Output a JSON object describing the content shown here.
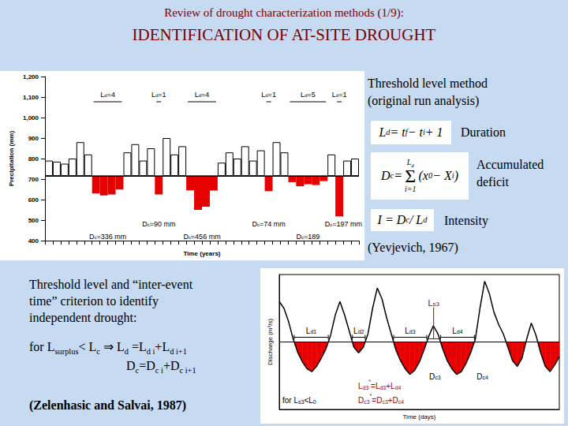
{
  "header": {
    "subtitle": "Review of drought characterization methods (1/9):",
    "title": "IDENTIFICATION OF AT-SITE DROUGHT"
  },
  "method": {
    "title": [
      "Threshold level method",
      "(original run analysis)"
    ],
    "items": [
      {
        "formula": [
          "L",
          {
            "sub": "d"
          },
          " = t",
          {
            "sub": "f"
          },
          " − t",
          {
            "sub": "i"
          },
          " + 1"
        ],
        "label": [
          "Duration"
        ]
      },
      {
        "formula": [
          "D",
          {
            "sub": "c"
          },
          " = ",
          {
            "sum": "Σ",
            "upper": [
              "L",
              {
                "sub": "d"
              }
            ],
            "lower": [
              "i=1"
            ]
          },
          "(x",
          {
            "sub": "0"
          },
          " − X",
          {
            "sub": "i"
          },
          ")"
        ],
        "label": [
          "Accumulated",
          "deficit"
        ]
      },
      {
        "formula": [
          "I = D",
          {
            "sub": "c"
          },
          " / L",
          {
            "sub": "d"
          }
        ],
        "label": [
          "Intensity"
        ]
      }
    ],
    "reference": "(Yevjevich, 1967)"
  },
  "criterion": {
    "text": [
      "Threshold level and “inter-event",
      "time” criterion to identify",
      "independent drought:"
    ],
    "rule": [
      [
        "for L",
        {
          "sub": "surplus"
        },
        "< L",
        {
          "sub": "c"
        },
        "  ⇒  L",
        {
          "sub": "d"
        },
        " =L",
        {
          "sub": "d i"
        },
        "+L",
        {
          "sub": "d i+1"
        }
      ],
      [
        "D",
        {
          "sub": "c"
        },
        "=D",
        {
          "sub": "c i"
        },
        "+D",
        {
          "sub": "c i+1"
        }
      ]
    ],
    "reference": "(Zelenhasic and Salvai, 1987)"
  },
  "chart_data": [
    {
      "type": "bar",
      "xlabel": "Time (years)",
      "ylabel": "Precipitation (mm)",
      "categories": [
        null,
        null,
        null,
        null,
        null,
        null,
        null,
        null,
        null,
        null,
        null,
        null,
        null,
        null,
        null,
        null,
        null,
        null,
        null,
        null,
        null,
        null,
        null,
        null,
        null,
        null,
        null,
        null,
        null,
        null,
        null,
        null,
        null,
        null,
        null,
        null,
        null,
        null,
        null,
        null
      ],
      "values": [
        790,
        785,
        775,
        800,
        880,
        820,
        630,
        620,
        625,
        649,
        830,
        870,
        790,
        850,
        625,
        900,
        820,
        860,
        645,
        550,
        565,
        644,
        780,
        830,
        800,
        860,
        790,
        840,
        641,
        880,
        830,
        685,
        665,
        675,
        671,
        690,
        820,
        518,
        790,
        800
      ],
      "threshold": 715,
      "color": "#e60000",
      "ylim": [
        400,
        1200
      ],
      "yticks": [
        400,
        500,
        600,
        700,
        800,
        900,
        1000,
        1100,
        1200
      ],
      "grid": false,
      "tick_labels": "y",
      "drought_labels": [
        [
          "L",
          {
            "sub": "d"
          },
          "=4"
        ],
        [
          "L",
          {
            "sub": "d"
          },
          "=1"
        ],
        [
          "L",
          {
            "sub": "d"
          },
          "=4"
        ],
        [
          "L",
          {
            "sub": "d"
          },
          "=1"
        ],
        [
          "L",
          {
            "sub": "d"
          },
          "=5"
        ],
        [
          "L",
          {
            "sub": "d"
          },
          "=1"
        ]
      ],
      "deficit_labels": [
        [
          "D",
          {
            "sub": "c"
          },
          "=336 mm"
        ],
        [
          "D",
          {
            "sub": "c"
          },
          "=90 mm"
        ],
        [
          "D",
          {
            "sub": "c"
          },
          "=456 mm"
        ],
        [
          "D",
          {
            "sub": "c"
          },
          "=74 mm"
        ],
        [
          "D",
          {
            "sub": "c"
          },
          "=189"
        ],
        [
          "D",
          {
            "sub": "c"
          },
          "=197 mm"
        ]
      ]
    },
    {
      "type": "line",
      "xlabel": "Time (days)",
      "ylabel": "Discharge (m³/s)",
      "x": [
        0,
        1,
        2,
        3,
        4,
        5,
        6,
        7,
        8,
        9,
        10,
        11,
        12,
        13,
        14,
        15,
        16,
        17,
        18,
        19,
        20,
        21,
        22,
        23,
        24,
        25,
        26,
        27,
        28,
        29,
        30,
        31,
        32,
        33,
        34,
        35,
        36,
        37,
        38,
        39,
        40,
        41,
        42,
        43,
        44,
        45,
        46,
        47,
        48,
        49,
        50,
        51,
        52,
        53,
        54,
        55,
        56,
        57,
        58,
        59,
        60
      ],
      "values": [
        8,
        7.5,
        6.5,
        5.2,
        4.2,
        3.5,
        3.0,
        2.8,
        3.2,
        3.8,
        4.5,
        5.5,
        7,
        8,
        7,
        5.8,
        4.6,
        4.2,
        4.6,
        5.6,
        7.5,
        9,
        8.2,
        6.8,
        5.6,
        4.4,
        3.6,
        3.0,
        2.6,
        2.9,
        3.5,
        4.4,
        5.4,
        6.2,
        5.6,
        4.5,
        3.6,
        3.0,
        2.6,
        2.8,
        3.4,
        4.2,
        5.2,
        7.5,
        9.5,
        8.6,
        7.2,
        6.3,
        5.6,
        4.6,
        3.6,
        3.2,
        3.8,
        5.2,
        6.4,
        5.5,
        4.2,
        3.2,
        2.8,
        3.3,
        3.9
      ],
      "threshold": 5,
      "color": "#e60000",
      "xlim": [
        0,
        60
      ],
      "ylim": [
        0,
        10
      ],
      "tick_labels": false,
      "drought_labels": [
        [
          "L",
          {
            "sub": "d1"
          }
        ],
        [
          "L",
          {
            "sub": "d2"
          }
        ],
        [
          "L",
          {
            "sub": "d3"
          }
        ],
        [
          "L",
          {
            "sub": "d4"
          }
        ]
      ],
      "deficit_labels": [
        {
          "text": [
            "D",
            {
              "sub": "c3"
            }
          ],
          "drought": 3
        },
        {
          "text": [
            "D",
            {
              "sub": "c4"
            }
          ],
          "drought": 4
        }
      ],
      "surplus_labels": [
        {
          "text": [
            "L",
            {
              "sub": "s3"
            }
          ],
          "after_drought": 3
        }
      ],
      "notes": [
        [
          "for L",
          {
            "sub": "s3"
          },
          "<L",
          {
            "sub": "0"
          }
        ],
        [
          "L",
          {
            "sub": "d3"
          },
          {
            "sup": "*"
          },
          "=L",
          {
            "sub": "d3"
          },
          "+L",
          {
            "sub": "d4"
          }
        ],
        [
          "D",
          {
            "sub": "c3"
          },
          {
            "sup": "*"
          },
          "=D",
          {
            "sub": "c3"
          },
          "+D",
          {
            "sub": "c4"
          }
        ]
      ]
    }
  ]
}
